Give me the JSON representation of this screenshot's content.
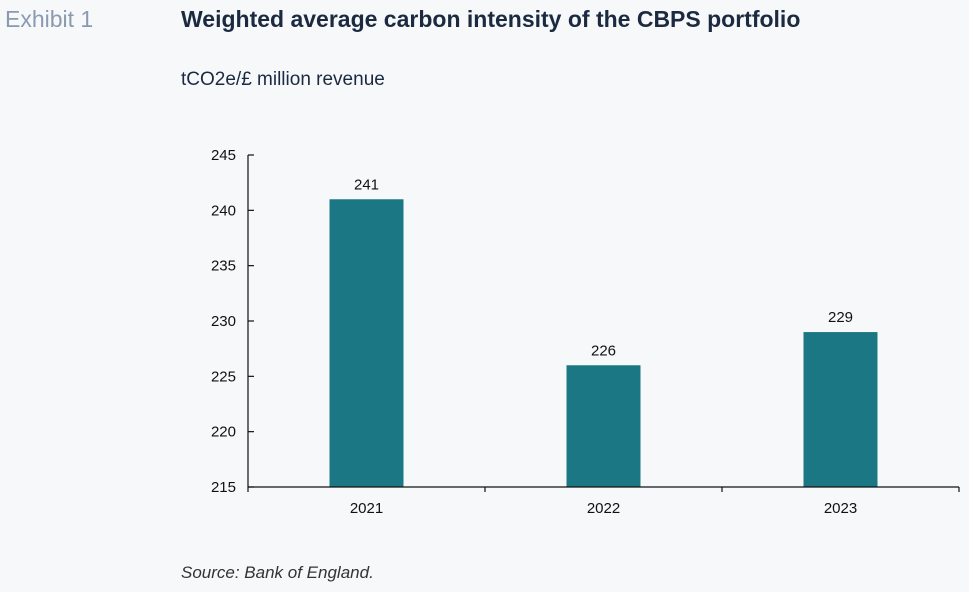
{
  "exhibit_label": "Exhibit 1",
  "title": "Weighted average carbon intensity of the CBPS portfolio",
  "unit_label": "tCO2e/£ million revenue",
  "source": "Source: Bank of England.",
  "colors": {
    "bar": "#1b7784",
    "axis": "#111111"
  },
  "chart_data": {
    "type": "bar",
    "title": "Weighted average carbon intensity of the CBPS portfolio",
    "ylabel": "tCO2e/£ million revenue",
    "xlabel": "",
    "categories": [
      "2021",
      "2022",
      "2023"
    ],
    "values": [
      241,
      226,
      229
    ],
    "data_labels": [
      "241",
      "226",
      "229"
    ],
    "ylim": [
      215,
      245
    ],
    "yticks": [
      215,
      220,
      225,
      230,
      235,
      240,
      245
    ],
    "grid": false,
    "legend": "none"
  }
}
